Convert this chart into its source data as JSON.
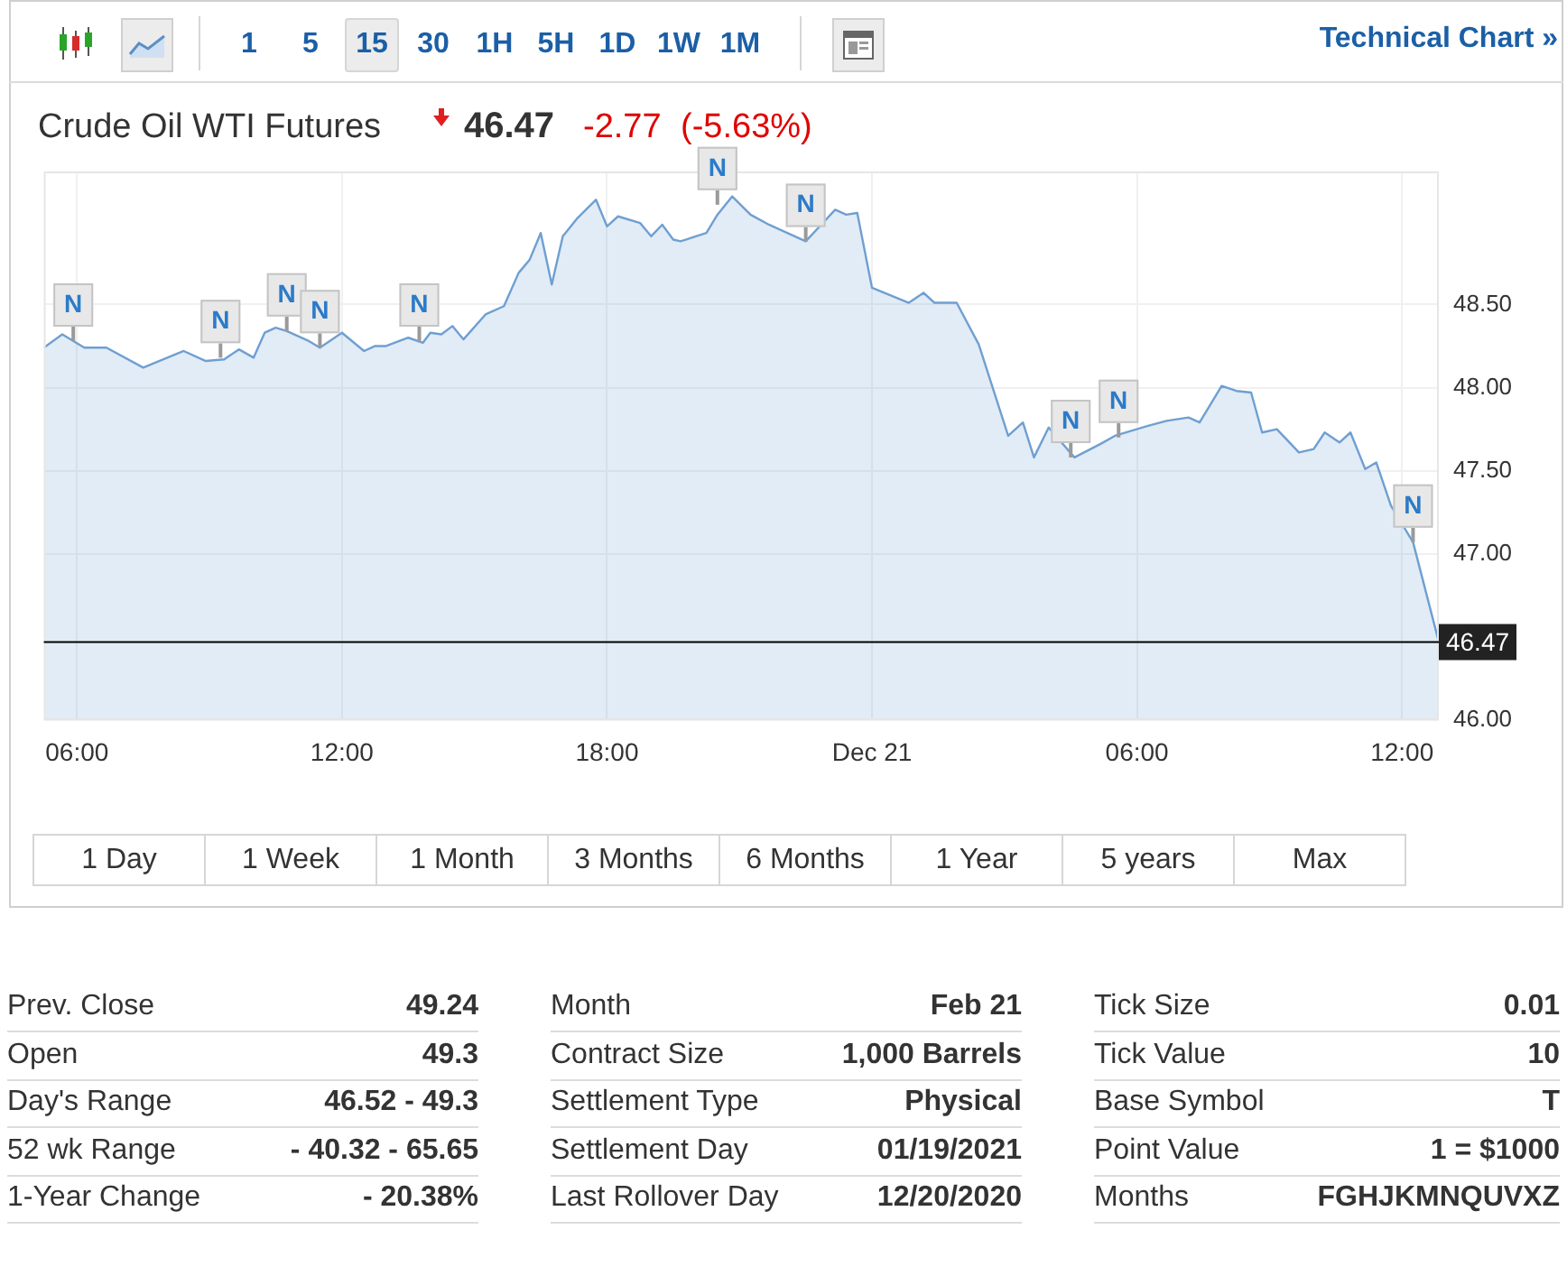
{
  "chart_data": {
    "type": "area",
    "title": "Crude Oil WTI Futures",
    "x": [
      "--12-20T05:15",
      "--12-20T05:40",
      "--12-20T06:10",
      "--12-20T06:40",
      "--12-20T07:30",
      "--12-20T08:25",
      "--12-20T08:55",
      "--12-20T09:20",
      "--12-20T09:40",
      "--12-20T10:00",
      "--12-20T10:15",
      "--12-20T10:30",
      "--12-20T10:45",
      "--12-20T10:55",
      "--12-20T11:15",
      "--12-20T11:30",
      "--12-20T12:00",
      "--12-20T12:30",
      "--12-20T12:45",
      "--12-20T13:00",
      "--12-20T13:30",
      "--12-20T13:50",
      "--12-20T14:00",
      "--12-20T14:15",
      "--12-20T14:30",
      "--12-20T14:45",
      "--12-20T15:15",
      "--12-20T15:40",
      "--12-20T16:00",
      "--12-20T16:15",
      "--12-20T16:30",
      "--12-20T16:45",
      "--12-20T17:00",
      "--12-20T17:20",
      "--12-20T17:45",
      "--12-20T18:00",
      "--12-20T18:15",
      "--12-20T18:45",
      "--12-20T19:00",
      "--12-20T19:15",
      "--12-20T19:30",
      "--12-20T19:40",
      "--12-20T20:15",
      "--12-20T20:30",
      "--12-20T20:50",
      "--12-20T21:15",
      "--12-20T21:40",
      "--12-20T22:30",
      "--12-20T22:50",
      "--12-20T23:10",
      "--12-20T23:25",
      "--12-20T23:40",
      "--12-21T00:00",
      "--12-21T00:50",
      "--12-21T01:10",
      "--12-21T01:25",
      "--12-21T01:55",
      "--12-21T02:25",
      "--12-21T03:05",
      "--12-21T03:25",
      "--12-21T03:40",
      "--12-21T04:00",
      "--12-21T04:35",
      "--12-21T05:10",
      "--12-21T05:30",
      "--12-21T06:15",
      "--12-21T06:40",
      "--12-21T07:10",
      "--12-21T07:25",
      "--12-21T07:55",
      "--12-21T08:15",
      "--12-21T08:35",
      "--12-21T08:50",
      "--12-21T09:10",
      "--12-21T09:40",
      "--12-21T10:00",
      "--12-21T10:15",
      "--12-21T10:35",
      "--12-21T10:50",
      "--12-21T11:10",
      "--12-21T11:25",
      "--12-21T11:45",
      "--12-21T12:15",
      "--12-21T12:50"
    ],
    "series": [
      {
        "color": "#6f9fd1",
        "values": [
          48.24,
          48.32,
          48.24,
          48.24,
          48.12,
          48.22,
          48.16,
          48.17,
          48.23,
          48.18,
          48.33,
          48.36,
          48.34,
          null,
          48.28,
          48.24,
          48.33,
          48.22,
          48.25,
          48.25,
          48.3,
          48.27,
          48.33,
          48.32,
          48.37,
          48.29,
          48.44,
          48.49,
          48.69,
          48.77,
          48.93,
          48.62,
          48.91,
          49.02,
          49.13,
          48.97,
          49.03,
          48.99,
          48.91,
          48.98,
          48.89,
          48.88,
          48.93,
          49.04,
          49.15,
          49.04,
          48.98,
          48.88,
          null,
          49.07,
          49.04,
          49.05,
          48.6,
          48.51,
          48.57,
          48.51,
          48.51,
          48.26,
          47.71,
          47.79,
          47.58,
          47.76,
          47.58,
          47.66,
          47.71,
          47.77,
          47.8,
          47.82,
          47.79,
          48.01,
          47.98,
          47.97,
          47.73,
          47.75,
          47.61,
          47.63,
          47.73,
          47.67,
          47.73,
          47.51,
          47.55,
          47.29,
          47.07,
          46.47
        ]
      }
    ],
    "xlim": [
      "--12-20T05:15",
      "--12-21T12:50"
    ],
    "xticks": [
      {
        "value": "--12-20T06:00",
        "label": "06:00"
      },
      {
        "value": "--12-20T12:00",
        "label": "12:00"
      },
      {
        "value": "--12-20T18:00",
        "label": "18:00"
      },
      {
        "value": "--12-21T00:00",
        "label": "Dec 21"
      },
      {
        "value": "--12-21T06:00",
        "label": "06:00"
      },
      {
        "value": "--12-21T12:00",
        "label": "12:00"
      }
    ],
    "ylim": [
      46,
      49.3
    ],
    "yticks": [
      {
        "value": 46,
        "label": "46.00"
      },
      {
        "value": 47,
        "label": "47.00"
      },
      {
        "value": 47.5,
        "label": "47.50"
      },
      {
        "value": 48,
        "label": "48.00"
      },
      {
        "value": 48.5,
        "label": "48.50"
      }
    ],
    "grid": true,
    "marker": "none",
    "ref_lines": [
      {
        "axis": "y",
        "value": 46.47,
        "label": "46.47",
        "color": "#000000"
      }
    ],
    "annotations": [
      "1",
      "5",
      "15",
      "30",
      "1H",
      "5H",
      "1D",
      "1W",
      "1M",
      "Technical Chart »",
      "46.47",
      "-2.77",
      "(-5.63%)",
      "1 Day",
      "1 Week",
      "1 Month",
      "3 Months",
      "6 Months",
      "1 Year",
      "5 years",
      "Max",
      "Prev. Close",
      "49.24",
      "Open",
      "49.3",
      "Day's Range",
      "46.52 - 49.3",
      "52 wk Range",
      "- 40.32 - 65.65",
      "1-Year Change",
      "- 20.38%",
      "Month",
      "Feb 21",
      "Contract Size",
      "1,000 Barrels",
      "Settlement Type",
      "Physical",
      "Settlement Day",
      "01/19/2021",
      "Last Rollover Day",
      "12/20/2020",
      "Tick Size",
      "0.01",
      "Tick Value",
      "10",
      "Base Symbol",
      "T",
      "Point Value",
      "1 = $1000",
      "Months",
      "FGHJKMNQUVXZ",
      {
        "text": "N",
        "x": "--12-20T05:55",
        "y": 48.28
      },
      {
        "text": "N",
        "x": "--12-20T09:15",
        "y": 48.18
      },
      {
        "text": "N",
        "x": "--12-20T10:45",
        "y": 48.34
      },
      {
        "text": "N",
        "x": "--12-20T11:30",
        "y": 48.24
      },
      {
        "text": "N",
        "x": "--12-20T13:45",
        "y": 48.28
      },
      {
        "text": "N",
        "x": "--12-20T20:30",
        "y": 49.1
      },
      {
        "text": "N",
        "x": "--12-20T22:30",
        "y": 48.88
      },
      {
        "text": "N",
        "x": "--12-21T04:30",
        "y": 47.58
      },
      {
        "text": "N",
        "x": "--12-21T05:35",
        "y": 47.7
      },
      {
        "text": "N",
        "x": "--12-21T12:15",
        "y": 47.07
      }
    ]
  }
}
